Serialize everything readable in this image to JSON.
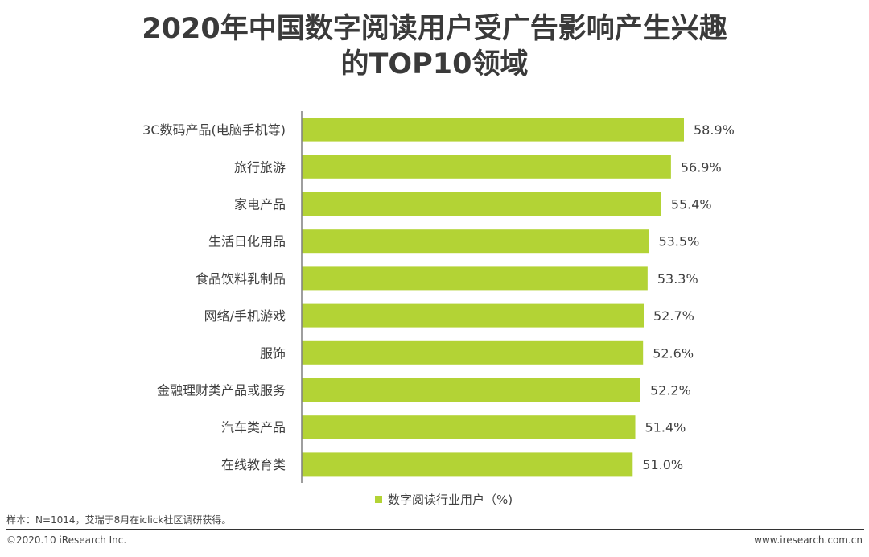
{
  "title_line1": "2020年中国数字阅读用户受广告影响产生兴趣",
  "title_line2": "的TOP10领域",
  "source_note": "样本：N=1014，艾瑞于8月在iclick社区调研获得。",
  "copyright": "©2020.10 iResearch Inc.",
  "website": "www.iresearch.com.cn",
  "colors": {
    "bar": "#b3d335",
    "axis": "#7f7f7f",
    "text": "#404040"
  },
  "chart_data": {
    "type": "bar",
    "orientation": "horizontal",
    "categories": [
      "3C数码产品(电脑手机等)",
      "旅行旅游",
      "家电产品",
      "生活日化用品",
      "食品饮料乳制品",
      "网络/手机游戏",
      "服饰",
      "金融理财类产品或服务",
      "汽车类产品",
      "在线教育类"
    ],
    "series": [
      {
        "name": "数字阅读行业用户（%)",
        "values": [
          58.9,
          56.9,
          55.4,
          53.5,
          53.3,
          52.7,
          52.6,
          52.2,
          51.4,
          51.0
        ]
      }
    ],
    "value_labels": [
      "58.9%",
      "56.9%",
      "55.4%",
      "53.5%",
      "53.3%",
      "52.7%",
      "52.6%",
      "52.2%",
      "51.4%",
      "51.0%"
    ],
    "xlim": [
      0,
      60
    ],
    "grid": false,
    "legend": "bottom"
  }
}
